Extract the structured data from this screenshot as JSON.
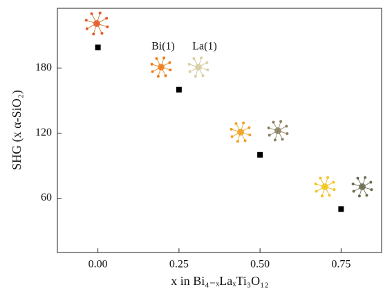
{
  "chart_data": {
    "type": "scatter",
    "x_label": "x in Bi₄₋ₓLaₓTi₃O₁₂",
    "y_label": "SHG (x α-SiO₂)",
    "annotations": [
      "Bi(1)",
      "La(1)"
    ],
    "x": [
      0,
      0.25,
      0.5,
      0.75
    ],
    "values": [
      199,
      160,
      100,
      50
    ],
    "color": "#000000",
    "xlim": [
      -0.125,
      0.875
    ],
    "xticks": [
      {
        "value": 0,
        "label": "0.00"
      },
      {
        "value": 0.25,
        "label": "0.25"
      },
      {
        "value": 0.5,
        "label": "0.50"
      },
      {
        "value": 0.75,
        "label": "0.75"
      }
    ],
    "ylim": [
      10,
      235
    ],
    "yticks": [
      60,
      120,
      180
    ]
  }
}
